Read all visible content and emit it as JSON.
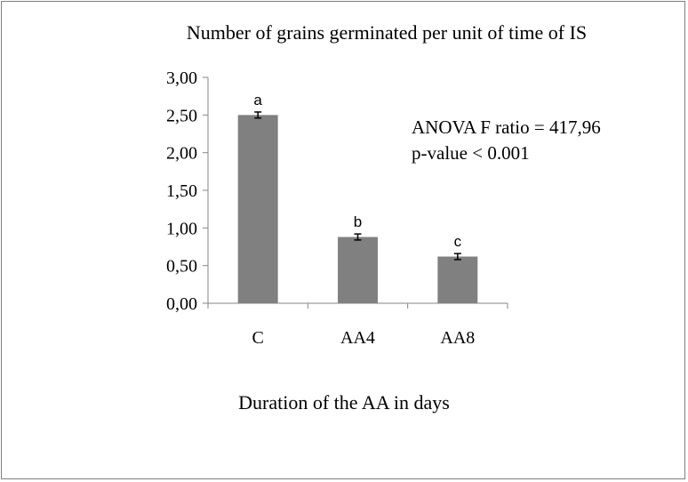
{
  "chart_data": {
    "type": "bar",
    "title": "Number of grains germinated per unit of time of  IS",
    "xlabel": "Duration of the AA in days",
    "ylabel": "",
    "categories": [
      "C",
      "AA4",
      "AA8"
    ],
    "values": [
      2.5,
      0.88,
      0.62
    ],
    "errors": [
      0.04,
      0.04,
      0.04
    ],
    "significance_letters": [
      "a",
      "b",
      "c"
    ],
    "ylim": [
      0,
      3
    ],
    "yticks": [
      0,
      0.5,
      1,
      1.5,
      2,
      2.5,
      3
    ],
    "ytick_labels": [
      "0,00",
      "0,50",
      "1,00",
      "1,50",
      "2,00",
      "2,50",
      "3,00"
    ],
    "bar_color": "#808080",
    "grid": false,
    "annotations": [
      "ANOVA F ratio = 417,96",
      "p-value < 0.001"
    ]
  }
}
